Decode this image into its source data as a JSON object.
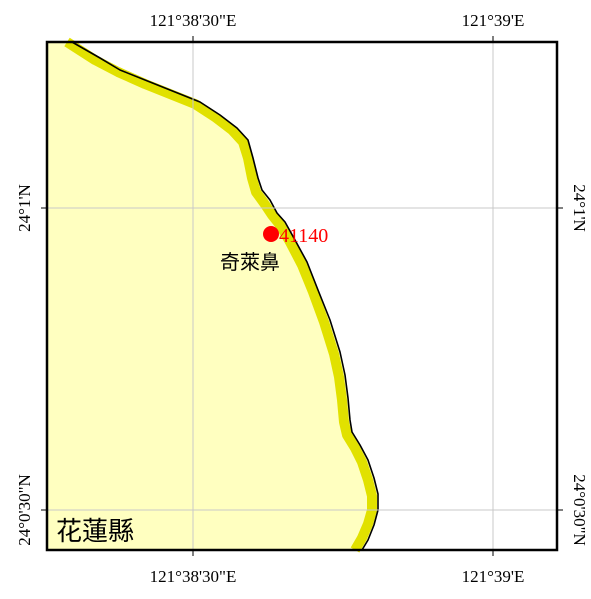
{
  "map": {
    "graticule": {
      "top_labels": [
        "121°38'30\"E",
        "121°39'E"
      ],
      "bottom_labels": [
        "121°38'30\"E",
        "121°39'E"
      ],
      "left_labels": [
        "24°1'N",
        "24°0'30\"N"
      ],
      "right_labels": [
        "24°1'N",
        "24°0'30\"N"
      ]
    },
    "station": {
      "id": "41140",
      "color": "#ff0000"
    },
    "place_name": "奇萊鼻",
    "county_name": "花蓮縣",
    "colors": {
      "land": "#ffffc0",
      "coast_band": "#e1e100",
      "coastline": "#000000",
      "sea": "#ffffff",
      "grid": "#c8c8c8",
      "frame": "#000000",
      "label": "#ff0000"
    }
  }
}
